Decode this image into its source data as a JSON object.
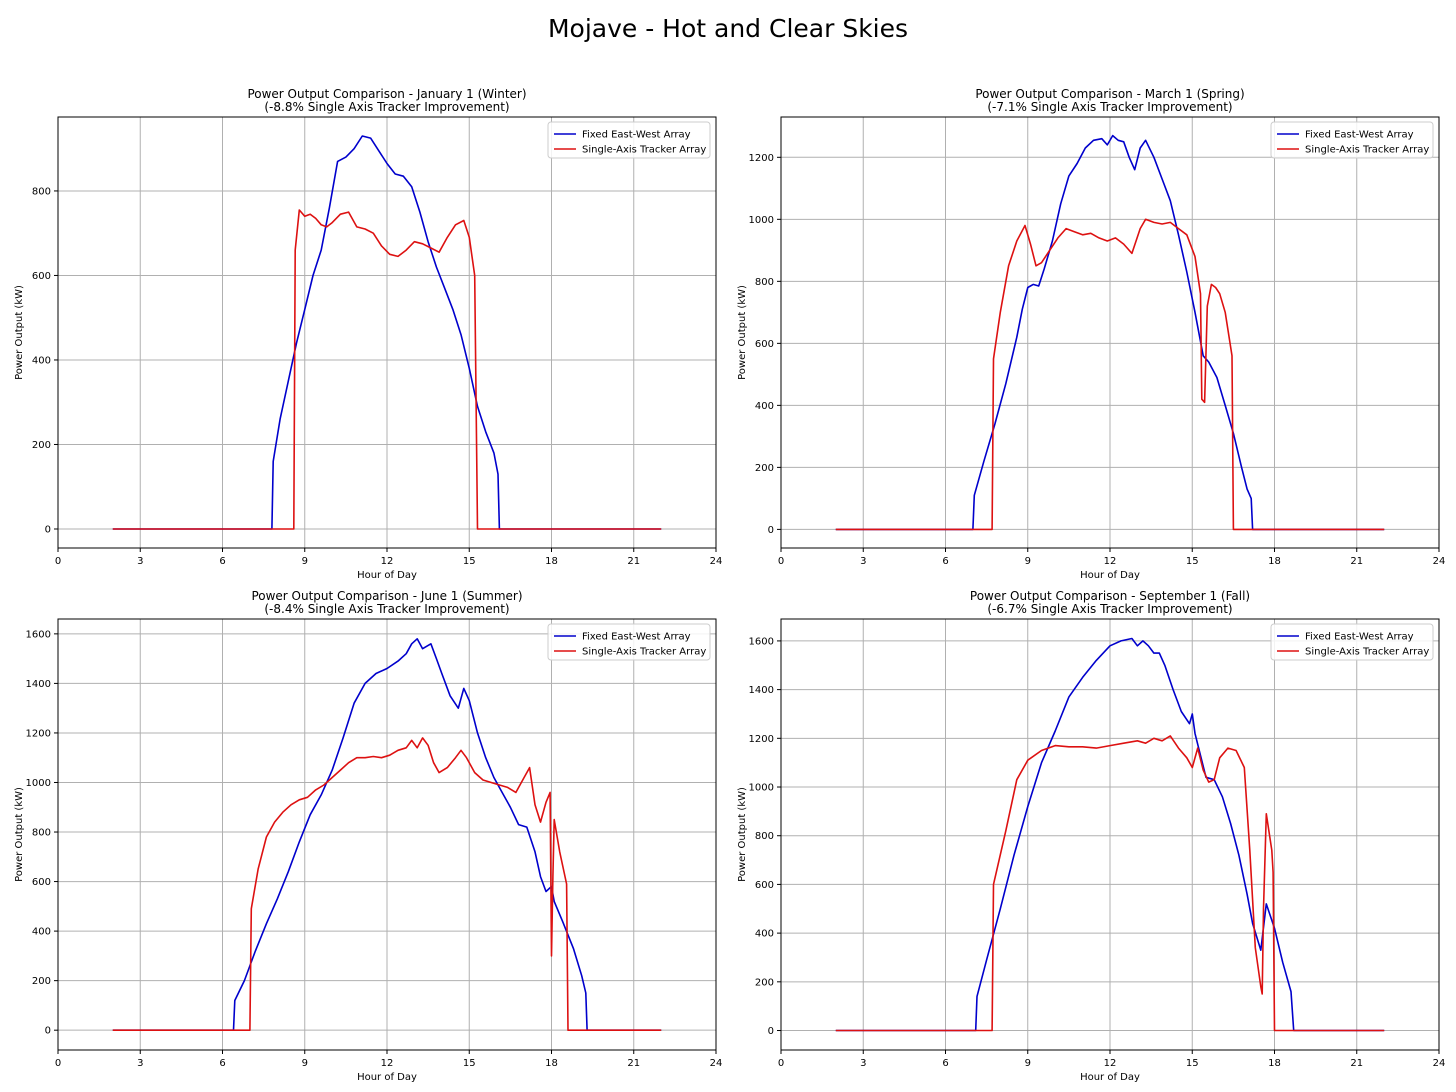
{
  "suptitle": "Mojave - Hot and Clear Skies",
  "colors": {
    "fixed": "#0000cc",
    "tracker": "#dd1111",
    "grid": "#b0b0b0"
  },
  "chart_data": [
    {
      "type": "line",
      "title": "Power Output Comparison - January 1 (Winter)",
      "subtitle": "(-8.8% Single Axis Tracker Improvement)",
      "xlabel": "Hour of Day",
      "ylabel": "Power Output (kW)",
      "xlim": [
        0,
        24
      ],
      "ylim": [
        -45,
        975
      ],
      "xticks": [
        0,
        3,
        6,
        9,
        12,
        15,
        18,
        21,
        24
      ],
      "yticks": [
        0,
        200,
        400,
        600,
        800
      ],
      "grid": true,
      "legend": "top-right",
      "series": [
        {
          "name": "Fixed East-West Array",
          "color": "#0000cc",
          "x": [
            2,
            7.8,
            7.85,
            8.1,
            8.4,
            8.7,
            9.0,
            9.3,
            9.6,
            9.9,
            10.2,
            10.5,
            10.8,
            11.1,
            11.4,
            11.7,
            12.0,
            12.3,
            12.6,
            12.9,
            13.2,
            13.5,
            13.8,
            14.1,
            14.4,
            14.7,
            15.0,
            15.3,
            15.6,
            15.9,
            16.05,
            16.1,
            22
          ],
          "y": [
            0,
            0,
            160,
            260,
            350,
            440,
            520,
            600,
            660,
            760,
            870,
            880,
            900,
            930,
            925,
            895,
            865,
            840,
            835,
            810,
            750,
            680,
            620,
            570,
            520,
            460,
            380,
            290,
            230,
            180,
            130,
            0,
            0
          ]
        },
        {
          "name": "Single-Axis Tracker Array",
          "color": "#dd1111",
          "x": [
            2,
            8.6,
            8.65,
            8.8,
            9.0,
            9.2,
            9.4,
            9.6,
            9.8,
            10.0,
            10.3,
            10.6,
            10.9,
            11.2,
            11.5,
            11.8,
            12.1,
            12.4,
            12.7,
            13.0,
            13.3,
            13.6,
            13.9,
            14.2,
            14.5,
            14.8,
            15.0,
            15.2,
            15.25,
            15.3,
            22
          ],
          "y": [
            0,
            0,
            660,
            755,
            740,
            745,
            735,
            720,
            715,
            725,
            745,
            750,
            715,
            710,
            700,
            670,
            650,
            645,
            660,
            680,
            675,
            665,
            655,
            690,
            720,
            730,
            690,
            600,
            300,
            0,
            0
          ]
        }
      ]
    },
    {
      "type": "line",
      "title": "Power Output Comparison - March 1 (Spring)",
      "subtitle": "(-7.1% Single Axis Tracker Improvement)",
      "xlabel": "Hour of Day",
      "ylabel": "Power Output (kW)",
      "xlim": [
        0,
        24
      ],
      "ylim": [
        -60,
        1330
      ],
      "xticks": [
        0,
        3,
        6,
        9,
        12,
        15,
        18,
        21,
        24
      ],
      "yticks": [
        0,
        200,
        400,
        600,
        800,
        1000,
        1200
      ],
      "grid": true,
      "legend": "top-right",
      "series": [
        {
          "name": "Fixed East-West Array",
          "color": "#0000cc",
          "x": [
            2,
            7.0,
            7.05,
            7.4,
            7.8,
            8.2,
            8.6,
            8.8,
            9.0,
            9.2,
            9.4,
            9.6,
            9.9,
            10.2,
            10.5,
            10.8,
            11.1,
            11.4,
            11.7,
            11.9,
            12.1,
            12.3,
            12.5,
            12.7,
            12.9,
            13.1,
            13.3,
            13.6,
            13.9,
            14.2,
            14.5,
            14.8,
            15.1,
            15.4,
            15.6,
            15.9,
            16.2,
            16.5,
            16.8,
            17.0,
            17.15,
            17.2,
            22
          ],
          "y": [
            0,
            0,
            110,
            220,
            340,
            470,
            620,
            710,
            780,
            790,
            785,
            840,
            930,
            1050,
            1140,
            1180,
            1230,
            1255,
            1260,
            1240,
            1270,
            1255,
            1250,
            1200,
            1160,
            1230,
            1255,
            1200,
            1130,
            1060,
            950,
            830,
            700,
            560,
            540,
            490,
            400,
            310,
            200,
            130,
            100,
            0,
            0
          ]
        },
        {
          "name": "Single-Axis Tracker Array",
          "color": "#dd1111",
          "x": [
            2,
            7.7,
            7.75,
            8.0,
            8.3,
            8.6,
            8.9,
            9.1,
            9.3,
            9.5,
            9.8,
            10.1,
            10.4,
            10.7,
            11.0,
            11.3,
            11.6,
            11.9,
            12.2,
            12.5,
            12.8,
            13.1,
            13.3,
            13.6,
            13.9,
            14.2,
            14.5,
            14.8,
            15.1,
            15.3,
            15.35,
            15.45,
            15.55,
            15.7,
            15.85,
            16.0,
            16.2,
            16.45,
            16.5,
            22
          ],
          "y": [
            0,
            0,
            550,
            700,
            850,
            930,
            980,
            920,
            850,
            860,
            900,
            940,
            970,
            960,
            950,
            955,
            940,
            930,
            940,
            920,
            890,
            970,
            1000,
            990,
            985,
            990,
            970,
            950,
            880,
            760,
            420,
            410,
            720,
            790,
            780,
            760,
            700,
            560,
            0,
            0
          ]
        }
      ]
    },
    {
      "type": "line",
      "title": "Power Output Comparison - June 1 (Summer)",
      "subtitle": "(-8.4% Single Axis Tracker Improvement)",
      "xlabel": "Hour of Day",
      "ylabel": "Power Output (kW)",
      "xlim": [
        0,
        24
      ],
      "ylim": [
        -80,
        1660
      ],
      "xticks": [
        0,
        3,
        6,
        9,
        12,
        15,
        18,
        21,
        24
      ],
      "yticks": [
        0,
        200,
        400,
        600,
        800,
        1000,
        1200,
        1400,
        1600
      ],
      "grid": true,
      "legend": "top-right",
      "series": [
        {
          "name": "Fixed East-West Array",
          "color": "#0000cc",
          "x": [
            2,
            6.4,
            6.45,
            6.8,
            7.2,
            7.6,
            8.0,
            8.4,
            8.8,
            9.2,
            9.6,
            10.0,
            10.4,
            10.8,
            11.2,
            11.6,
            12.0,
            12.4,
            12.7,
            12.9,
            13.1,
            13.3,
            13.6,
            13.8,
            14.0,
            14.3,
            14.6,
            14.8,
            15.0,
            15.3,
            15.6,
            15.9,
            16.2,
            16.5,
            16.8,
            17.1,
            17.4,
            17.6,
            17.8,
            18.0,
            18.1,
            18.4,
            18.8,
            19.1,
            19.25,
            19.3,
            22
          ],
          "y": [
            0,
            0,
            120,
            200,
            320,
            430,
            530,
            640,
            760,
            870,
            950,
            1050,
            1180,
            1320,
            1400,
            1440,
            1460,
            1490,
            1520,
            1560,
            1580,
            1540,
            1560,
            1500,
            1440,
            1350,
            1300,
            1380,
            1330,
            1200,
            1100,
            1020,
            960,
            900,
            830,
            820,
            720,
            620,
            560,
            580,
            520,
            440,
            330,
            220,
            150,
            0,
            0
          ]
        },
        {
          "name": "Single-Axis Tracker Array",
          "color": "#dd1111",
          "x": [
            2,
            7.0,
            7.05,
            7.3,
            7.6,
            7.9,
            8.2,
            8.5,
            8.8,
            9.1,
            9.4,
            9.7,
            10.0,
            10.3,
            10.6,
            10.9,
            11.2,
            11.5,
            11.8,
            12.1,
            12.4,
            12.7,
            12.9,
            13.1,
            13.3,
            13.5,
            13.7,
            13.9,
            14.2,
            14.5,
            14.7,
            14.9,
            15.2,
            15.5,
            15.8,
            16.1,
            16.4,
            16.7,
            17.0,
            17.2,
            17.4,
            17.6,
            17.8,
            17.95,
            18.0,
            18.05,
            18.1,
            18.3,
            18.55,
            18.6,
            22
          ],
          "y": [
            0,
            0,
            490,
            650,
            780,
            840,
            880,
            910,
            930,
            940,
            970,
            990,
            1020,
            1050,
            1080,
            1100,
            1100,
            1105,
            1100,
            1110,
            1130,
            1140,
            1170,
            1140,
            1180,
            1150,
            1080,
            1040,
            1060,
            1100,
            1130,
            1100,
            1040,
            1010,
            1000,
            990,
            980,
            960,
            1020,
            1060,
            910,
            840,
            920,
            960,
            300,
            620,
            850,
            720,
            590,
            0,
            0
          ]
        }
      ]
    },
    {
      "type": "line",
      "title": "Power Output Comparison - September 1 (Fall)",
      "subtitle": "(-6.7% Single Axis Tracker Improvement)",
      "xlabel": "Hour of Day",
      "ylabel": "Power Output (kW)",
      "xlim": [
        0,
        24
      ],
      "ylim": [
        -80,
        1690
      ],
      "xticks": [
        0,
        3,
        6,
        9,
        12,
        15,
        18,
        21,
        24
      ],
      "yticks": [
        0,
        200,
        400,
        600,
        800,
        1000,
        1200,
        1400,
        1600
      ],
      "grid": true,
      "legend": "top-right",
      "series": [
        {
          "name": "Fixed East-West Array",
          "color": "#0000cc",
          "x": [
            2,
            7.1,
            7.15,
            7.5,
            8.0,
            8.5,
            9.0,
            9.5,
            10.0,
            10.5,
            11.0,
            11.5,
            12.0,
            12.4,
            12.8,
            13.0,
            13.2,
            13.4,
            13.6,
            13.8,
            14.0,
            14.3,
            14.6,
            14.9,
            15.0,
            15.1,
            15.3,
            15.5,
            15.8,
            16.1,
            16.4,
            16.7,
            17.0,
            17.2,
            17.5,
            17.7,
            18.0,
            18.3,
            18.6,
            18.7,
            22
          ],
          "y": [
            0,
            0,
            140,
            290,
            500,
            720,
            920,
            1100,
            1230,
            1370,
            1450,
            1520,
            1580,
            1600,
            1610,
            1580,
            1600,
            1580,
            1550,
            1550,
            1500,
            1400,
            1310,
            1260,
            1300,
            1220,
            1130,
            1040,
            1030,
            960,
            850,
            720,
            560,
            440,
            330,
            520,
            420,
            280,
            160,
            0,
            0
          ]
        },
        {
          "name": "Single-Axis Tracker Array",
          "color": "#dd1111",
          "x": [
            2,
            7.7,
            7.75,
            8.2,
            8.6,
            9.0,
            9.5,
            10.0,
            10.5,
            11.0,
            11.5,
            12.0,
            12.5,
            13.0,
            13.3,
            13.6,
            13.9,
            14.2,
            14.5,
            14.8,
            15.0,
            15.2,
            15.4,
            15.6,
            15.8,
            16.0,
            16.3,
            16.6,
            16.9,
            17.1,
            17.3,
            17.5,
            17.55,
            17.6,
            17.7,
            17.9,
            17.95,
            18.0,
            22
          ],
          "y": [
            0,
            0,
            600,
            820,
            1030,
            1110,
            1150,
            1170,
            1165,
            1165,
            1160,
            1170,
            1180,
            1190,
            1180,
            1200,
            1190,
            1210,
            1160,
            1120,
            1080,
            1160,
            1070,
            1020,
            1030,
            1120,
            1160,
            1150,
            1080,
            740,
            340,
            180,
            150,
            500,
            890,
            740,
            650,
            0,
            0
          ]
        }
      ]
    }
  ]
}
